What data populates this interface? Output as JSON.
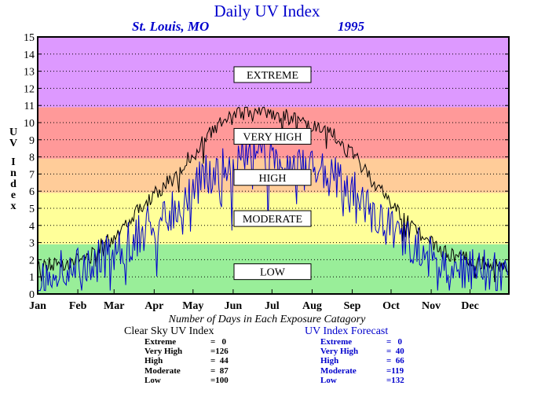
{
  "header": {
    "title": "Daily UV Index",
    "location": "St. Louis, MO",
    "year": "1995"
  },
  "chart_data": {
    "type": "line",
    "title": "Daily UV Index",
    "ylabel": "UV Index",
    "xlabel": "",
    "ylim": [
      0,
      15
    ],
    "y_ticks": [
      "0",
      "1",
      "2",
      "3",
      "4",
      "5",
      "6",
      "7",
      "8",
      "9",
      "10",
      "11",
      "12",
      "13",
      "14",
      "15"
    ],
    "x_ticks": [
      "Jan",
      "Feb",
      "Mar",
      "Apr",
      "May",
      "Jun",
      "Jul",
      "Aug",
      "Sep",
      "Oct",
      "Nov",
      "Dec"
    ],
    "grid": true,
    "bands": [
      {
        "label": "LOW",
        "from": 0,
        "to": 2.9,
        "color": "#99ee99"
      },
      {
        "label": "MODERATE",
        "from": 2.9,
        "to": 5.9,
        "color": "#ffff99"
      },
      {
        "label": "HIGH",
        "from": 5.9,
        "to": 7.9,
        "color": "#ffcc99"
      },
      {
        "label": "VERY HIGH",
        "from": 7.9,
        "to": 10.9,
        "color": "#ff9999"
      },
      {
        "label": "EXTREME",
        "from": 10.9,
        "to": 15,
        "color": "#dd99ff"
      }
    ],
    "band_label_values": {
      "EXTREME": 12.8,
      "VERY HIGH": 9.2,
      "HIGH": 6.8,
      "MODERATE": 4.4,
      "LOW": 1.3
    },
    "series": [
      {
        "name": "Clear Sky UV Index",
        "color": "#000000",
        "x_days": [
          1,
          10,
          20,
          31,
          40,
          50,
          59,
          70,
          80,
          90,
          100,
          110,
          120,
          130,
          140,
          151,
          160,
          170,
          181,
          190,
          200,
          212,
          220,
          230,
          243,
          250,
          260,
          273,
          280,
          290,
          304,
          310,
          320,
          334,
          345,
          355,
          365
        ],
        "values": [
          1.5,
          1.7,
          1.8,
          2.0,
          2.1,
          2.8,
          3.3,
          4.2,
          5.1,
          5.7,
          6.4,
          7.0,
          8.2,
          9.0,
          9.8,
          10.3,
          10.6,
          10.9,
          10.6,
          10.4,
          10.2,
          9.8,
          9.5,
          9.2,
          8.2,
          7.6,
          6.6,
          5.4,
          4.8,
          4.0,
          3.0,
          2.6,
          2.3,
          2.0,
          1.8,
          1.6,
          1.5
        ]
      },
      {
        "name": "UV Index Forecast",
        "color": "#0000cc",
        "x_days": [
          1,
          10,
          20,
          31,
          40,
          50,
          59,
          70,
          80,
          90,
          100,
          110,
          120,
          130,
          140,
          151,
          160,
          170,
          181,
          190,
          200,
          212,
          220,
          230,
          243,
          250,
          260,
          273,
          280,
          290,
          304,
          310,
          320,
          334,
          345,
          355,
          365
        ],
        "values": [
          1.0,
          1.2,
          1.3,
          1.5,
          1.4,
          2.0,
          2.5,
          3.0,
          3.6,
          4.1,
          4.8,
          5.1,
          6.2,
          6.8,
          7.4,
          7.7,
          7.8,
          7.9,
          7.9,
          7.7,
          7.4,
          7.1,
          7.2,
          7.0,
          6.3,
          5.5,
          4.7,
          4.0,
          3.4,
          3.0,
          2.3,
          2.0,
          1.7,
          1.5,
          1.3,
          1.2,
          1.0
        ]
      }
    ]
  },
  "stats_title": "Number of Days in Each Exposure Catagory",
  "clear_sky": {
    "title": "Clear Sky UV Index",
    "rows": [
      {
        "label": "Extreme",
        "value": "=   0"
      },
      {
        "label": "Very High",
        "value": "=126"
      },
      {
        "label": "High",
        "value": "=  44"
      },
      {
        "label": "Moderate",
        "value": "=  87"
      },
      {
        "label": "Low",
        "value": "=100"
      }
    ]
  },
  "forecast": {
    "title": "UV Index Forecast",
    "rows": [
      {
        "label": "Extreme",
        "value": "=   0"
      },
      {
        "label": "Very High",
        "value": "=  40"
      },
      {
        "label": "High",
        "value": "=  66"
      },
      {
        "label": "Moderate",
        "value": "=119"
      },
      {
        "label": "Low",
        "value": "=132"
      }
    ]
  }
}
